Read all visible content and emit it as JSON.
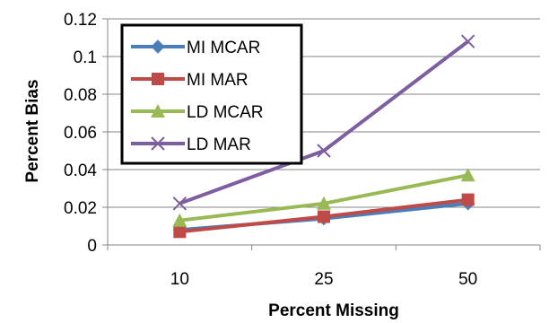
{
  "chart_data": {
    "type": "line",
    "xlabel": "Percent Missing",
    "ylabel": "Percent Bias",
    "categories": [
      "10",
      "25",
      "50"
    ],
    "ylim": [
      0,
      0.12
    ],
    "yticks": [
      "0",
      "0.02",
      "0.04",
      "0.06",
      "0.08",
      "0.1",
      "0.12"
    ],
    "grid": true,
    "legend_position": "top-left",
    "series": [
      {
        "name": "MI MCAR",
        "values": [
          0.008,
          0.014,
          0.022
        ],
        "color": "#4A7EBB",
        "marker": "diamond"
      },
      {
        "name": "MI MAR",
        "values": [
          0.007,
          0.015,
          0.024
        ],
        "color": "#BE4B48",
        "marker": "square"
      },
      {
        "name": "LD MCAR",
        "values": [
          0.013,
          0.022,
          0.037
        ],
        "color": "#98B954",
        "marker": "triangle"
      },
      {
        "name": "LD MAR",
        "values": [
          0.022,
          0.05,
          0.108
        ],
        "color": "#7D5FA0",
        "marker": "x"
      }
    ]
  }
}
